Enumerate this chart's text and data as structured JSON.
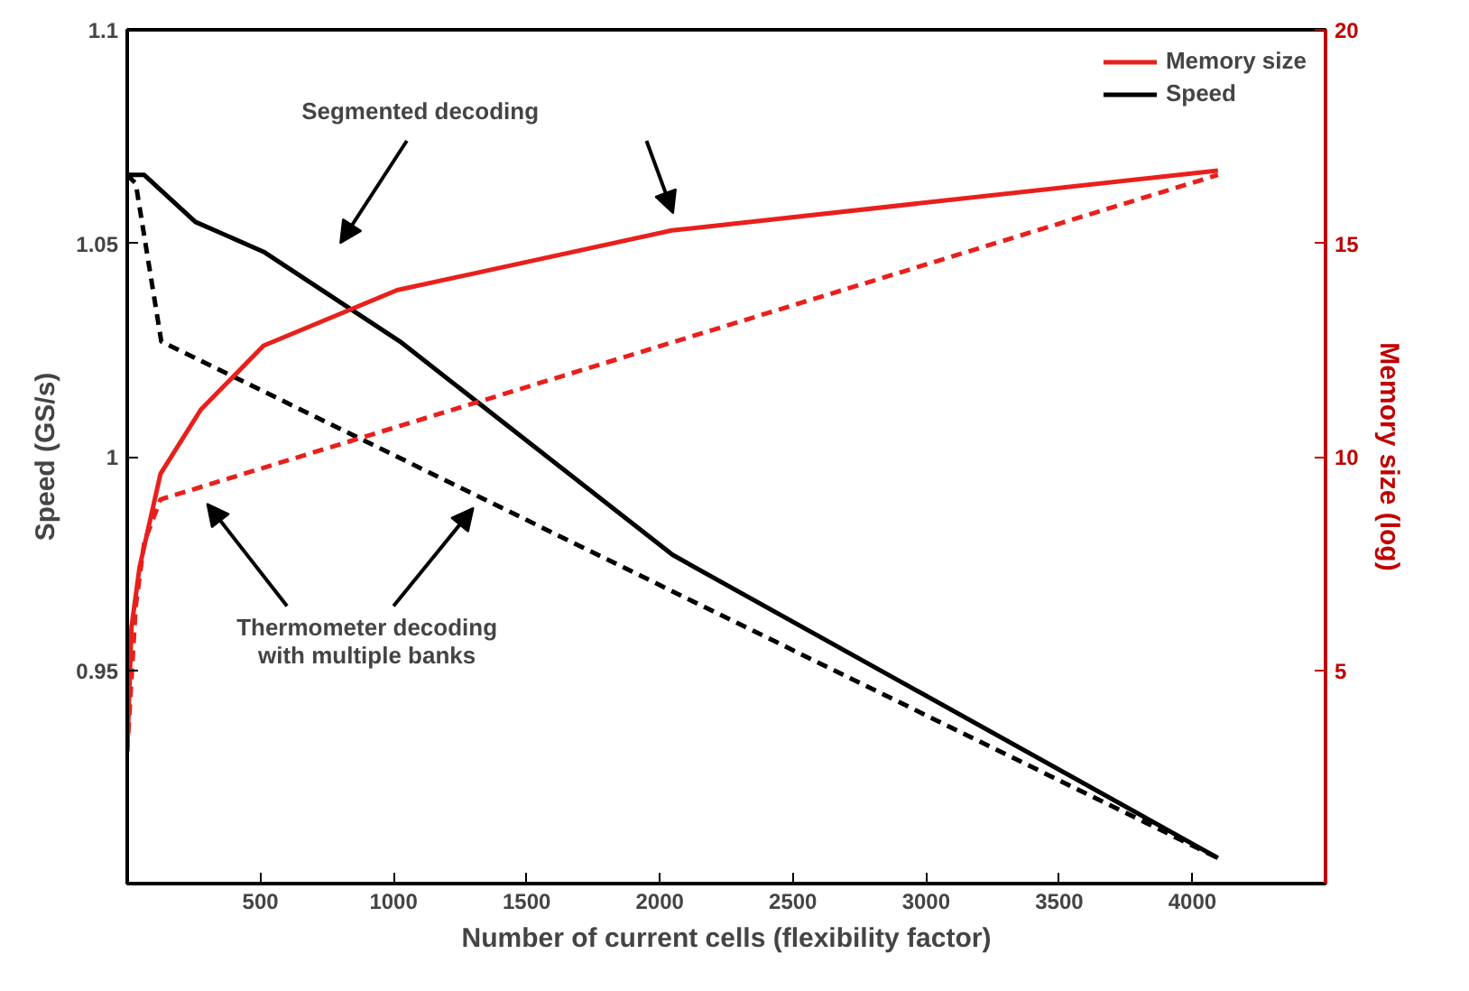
{
  "chart_data": {
    "type": "line",
    "xlabel": "Number of current cells (flexibility factor)",
    "ylabel": "Speed (GS/s)",
    "y2label": "Memory size (log)",
    "xlim": [
      0,
      4500
    ],
    "xticks": [
      500,
      1000,
      1500,
      2000,
      2500,
      3000,
      3500,
      4000
    ],
    "ylim": [
      0.9,
      1.1
    ],
    "yticks": [
      0.95,
      1,
      1.05,
      1.1
    ],
    "y2lim": [
      0,
      20
    ],
    "y2ticks": [
      5,
      10,
      15,
      20
    ],
    "grid": false,
    "legend": "top right",
    "marker": "none",
    "annotations": [
      "Segmented decoding",
      "Thermometer decoding\nwith multiple banks"
    ],
    "series": [
      {
        "name": "Speed",
        "color": "#000000",
        "line_style": "solid",
        "x": [
          0,
          64,
          256,
          512,
          1024,
          2048,
          4096
        ],
        "values": [
          1.066,
          1.066,
          1.055,
          1.048,
          1.027,
          0.977,
          0.906
        ]
      },
      {
        "color": "#000000",
        "line_style": "dashed",
        "x": [
          0,
          32,
          128,
          4096
        ],
        "values": [
          1.066,
          1.064,
          1.027,
          0.906
        ]
      },
      {
        "name": "Memory size",
        "color": "#e8201c",
        "axis": "y2",
        "line_style": "solid",
        "x": [
          0,
          16,
          46,
          125,
          276,
          512,
          1013,
          2045,
          4096
        ],
        "values": [
          3.1,
          6,
          7.4,
          9.6,
          11.1,
          12.6,
          13.9,
          15.3,
          16.7
        ]
      },
      {
        "color": "#e8201c",
        "axis": "y2",
        "line_style": "dashed",
        "x": [
          0,
          32,
          64,
          125,
          4096
        ],
        "values": [
          3.1,
          6.5,
          8.0,
          9.0,
          16.6
        ]
      }
    ]
  }
}
